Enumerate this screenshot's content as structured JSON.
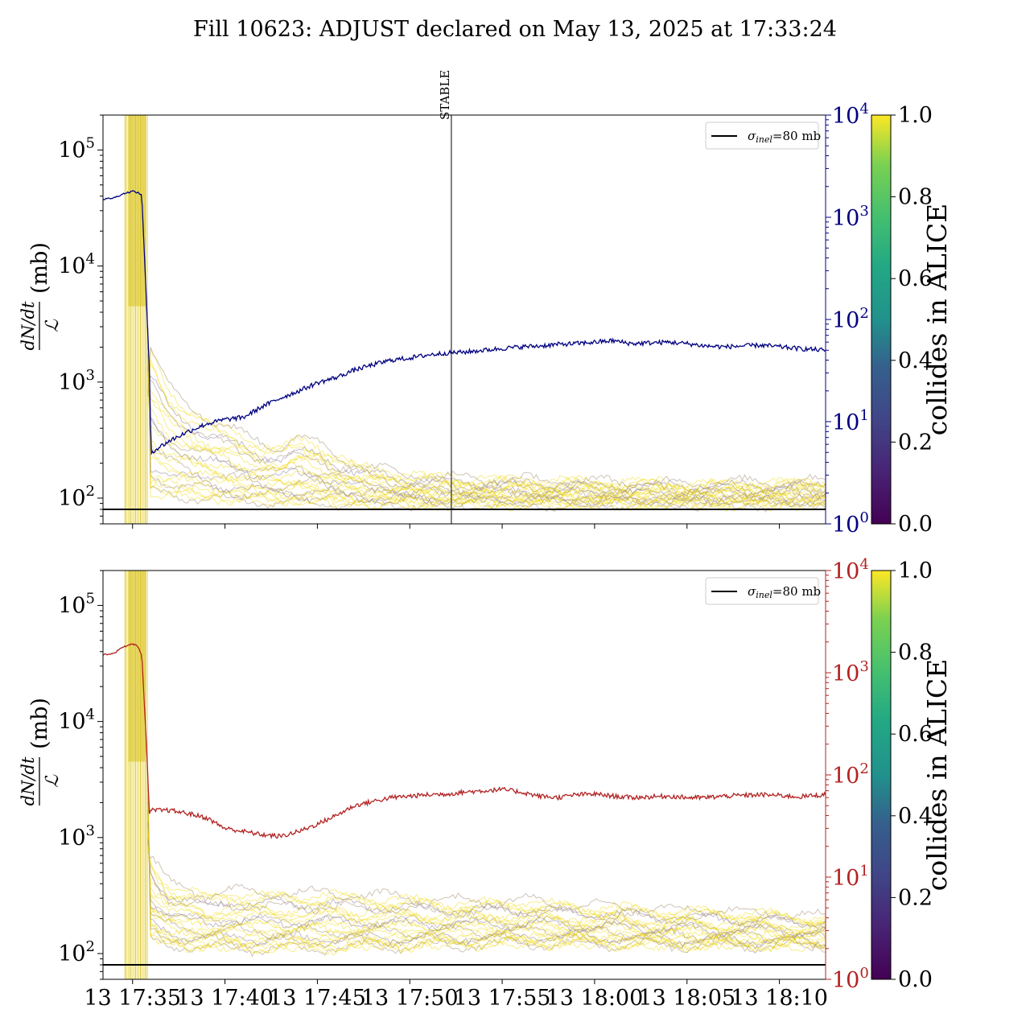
{
  "title": "Fill 10623: ADJUST declared on May 13, 2025 at 17:33:24",
  "chart_data": [
    {
      "type": "line",
      "panel": "top",
      "y_axis_left": {
        "label": "dN/dt / ℒ (mb)",
        "scale": "log",
        "ylim": [
          60,
          200000
        ],
        "ticks": [
          {
            "value": 100,
            "base": "10",
            "exp": "2"
          },
          {
            "value": 1000,
            "base": "10",
            "exp": "3"
          },
          {
            "value": 10000,
            "base": "10",
            "exp": "4"
          },
          {
            "value": 100000,
            "base": "10",
            "exp": "5"
          }
        ]
      },
      "y_axis_right": {
        "scale": "log",
        "ylim": [
          1,
          10000
        ],
        "color": "#000080",
        "ticks": [
          {
            "value": 1,
            "base": "10",
            "exp": "0"
          },
          {
            "value": 10,
            "base": "10",
            "exp": "1"
          },
          {
            "value": 100,
            "base": "10",
            "exp": "2"
          },
          {
            "value": 1000,
            "base": "10",
            "exp": "3"
          },
          {
            "value": 10000,
            "base": "10",
            "exp": "4"
          }
        ]
      },
      "x_range": [
        "2025-05-13 17:33:24",
        "2025-05-13 18:12:30"
      ],
      "reference_line": {
        "value": 80,
        "legend_sym": "σ",
        "legend_sub": "inel",
        "legend_rest": "=80 mb"
      },
      "vertical_marker": {
        "label": "STABLE",
        "time": "2025-05-13 17:52:15"
      },
      "right_series_color": "#000080",
      "right_series": [
        [
          "17:33:24",
          1500
        ],
        [
          "17:34:00",
          1550
        ],
        [
          "17:34:30",
          1700
        ],
        [
          "17:35:00",
          1800
        ],
        [
          "17:35:15",
          1750
        ],
        [
          "17:35:30",
          1650
        ],
        [
          "17:35:45",
          150
        ],
        [
          "17:35:55",
          30
        ],
        [
          "17:36:00",
          5
        ],
        [
          "17:37:00",
          6.5
        ],
        [
          "17:38:00",
          8
        ],
        [
          "17:39:00",
          9.5
        ],
        [
          "17:40:00",
          10.5
        ],
        [
          "17:41:00",
          11
        ],
        [
          "17:42:00",
          14
        ],
        [
          "17:43:00",
          17
        ],
        [
          "17:44:00",
          20
        ],
        [
          "17:45:00",
          24
        ],
        [
          "17:46:00",
          27
        ],
        [
          "17:47:00",
          32
        ],
        [
          "17:48:00",
          36
        ],
        [
          "17:49:00",
          40
        ],
        [
          "17:50:00",
          42
        ],
        [
          "17:51:00",
          45
        ],
        [
          "17:52:00",
          47
        ],
        [
          "17:53:00",
          48
        ],
        [
          "17:54:00",
          50
        ],
        [
          "17:55:00",
          52
        ],
        [
          "17:56:00",
          54
        ],
        [
          "17:57:00",
          55
        ],
        [
          "17:58:00",
          57
        ],
        [
          "17:59:00",
          58
        ],
        [
          "18:00:00",
          60
        ],
        [
          "18:01:00",
          62
        ],
        [
          "18:02:00",
          58
        ],
        [
          "18:03:00",
          59
        ],
        [
          "18:04:00",
          60
        ],
        [
          "18:05:00",
          58
        ],
        [
          "18:06:00",
          55
        ],
        [
          "18:07:00",
          54
        ],
        [
          "18:08:00",
          55
        ],
        [
          "18:09:00",
          56
        ],
        [
          "18:10:00",
          54
        ],
        [
          "18:11:00",
          52
        ],
        [
          "18:12:30",
          50
        ]
      ],
      "band_low": [
        [
          "17:36:00",
          110
        ],
        [
          "17:37:00",
          105
        ],
        [
          "17:38:00",
          102
        ],
        [
          "17:40:00",
          96
        ],
        [
          "17:43:00",
          92
        ],
        [
          "17:46:00",
          90
        ],
        [
          "17:50:00",
          88
        ],
        [
          "17:55:00",
          88
        ],
        [
          "18:00:00",
          88
        ],
        [
          "18:05:00",
          88
        ],
        [
          "18:12:30",
          88
        ]
      ],
      "band_high": [
        [
          "17:36:00",
          2000
        ],
        [
          "17:37:00",
          900
        ],
        [
          "17:38:00",
          650
        ],
        [
          "17:39:00",
          500
        ],
        [
          "17:40:00",
          420
        ],
        [
          "17:41:00",
          350
        ],
        [
          "17:42:00",
          300
        ],
        [
          "17:43:00",
          280
        ],
        [
          "17:44:00",
          330
        ],
        [
          "17:45:00",
          300
        ],
        [
          "17:46:00",
          240
        ],
        [
          "17:47:00",
          200
        ],
        [
          "17:48:00",
          180
        ],
        [
          "17:50:00",
          160
        ],
        [
          "17:52:00",
          150
        ],
        [
          "17:55:00",
          145
        ],
        [
          "18:00:00",
          140
        ],
        [
          "18:05:00",
          135
        ],
        [
          "18:12:30",
          140
        ]
      ],
      "colorbar": {
        "label": "collides in ALICE",
        "range": [
          0,
          1
        ],
        "ticks": [
          "0.0",
          "0.2",
          "0.4",
          "0.6",
          "0.8",
          "1.0"
        ],
        "colormap": "viridis"
      }
    },
    {
      "type": "line",
      "panel": "bottom",
      "y_axis_left": {
        "label": "dN/dt / ℒ (mb)",
        "scale": "log",
        "ylim": [
          60,
          200000
        ],
        "ticks": [
          {
            "value": 100,
            "base": "10",
            "exp": "2"
          },
          {
            "value": 1000,
            "base": "10",
            "exp": "3"
          },
          {
            "value": 10000,
            "base": "10",
            "exp": "4"
          },
          {
            "value": 100000,
            "base": "10",
            "exp": "5"
          }
        ]
      },
      "y_axis_right": {
        "scale": "log",
        "ylim": [
          1,
          10000
        ],
        "color": "#b22222",
        "ticks": [
          {
            "value": 1,
            "base": "10",
            "exp": "0"
          },
          {
            "value": 10,
            "base": "10",
            "exp": "1"
          },
          {
            "value": 100,
            "base": "10",
            "exp": "2"
          },
          {
            "value": 1000,
            "base": "10",
            "exp": "3"
          },
          {
            "value": 10000,
            "base": "10",
            "exp": "4"
          }
        ]
      },
      "x_range": [
        "2025-05-13 17:33:24",
        "2025-05-13 18:12:30"
      ],
      "x_ticks": [
        {
          "time": "17:35:00",
          "label": "13 17:35"
        },
        {
          "time": "17:40:00",
          "label": "13 17:40"
        },
        {
          "time": "17:45:00",
          "label": "13 17:45"
        },
        {
          "time": "17:50:00",
          "label": "13 17:50"
        },
        {
          "time": "17:55:00",
          "label": "13 17:55"
        },
        {
          "time": "18:00:00",
          "label": "13 18:00"
        },
        {
          "time": "18:05:00",
          "label": "13 18:05"
        },
        {
          "time": "18:10:00",
          "label": "13 18:10"
        }
      ],
      "reference_line": {
        "value": 80,
        "legend_sym": "σ",
        "legend_sub": "inel",
        "legend_rest": "=80 mb"
      },
      "right_series_color": "#b22222",
      "right_series": [
        [
          "17:33:24",
          1500
        ],
        [
          "17:34:00",
          1550
        ],
        [
          "17:34:30",
          1800
        ],
        [
          "17:35:00",
          1900
        ],
        [
          "17:35:15",
          1850
        ],
        [
          "17:35:30",
          1500
        ],
        [
          "17:35:45",
          200
        ],
        [
          "17:35:55",
          40
        ],
        [
          "17:36:00",
          45
        ],
        [
          "17:37:00",
          45
        ],
        [
          "17:38:00",
          42
        ],
        [
          "17:39:00",
          38
        ],
        [
          "17:40:00",
          30
        ],
        [
          "17:41:00",
          28
        ],
        [
          "17:42:00",
          26
        ],
        [
          "17:43:00",
          25
        ],
        [
          "17:44:00",
          28
        ],
        [
          "17:45:00",
          33
        ],
        [
          "17:46:00",
          40
        ],
        [
          "17:47:00",
          50
        ],
        [
          "17:48:00",
          55
        ],
        [
          "17:49:00",
          60
        ],
        [
          "17:50:00",
          62
        ],
        [
          "17:51:00",
          64
        ],
        [
          "17:52:00",
          65
        ],
        [
          "17:53:00",
          68
        ],
        [
          "17:54:00",
          70
        ],
        [
          "17:55:00",
          72
        ],
        [
          "17:56:00",
          68
        ],
        [
          "17:57:00",
          62
        ],
        [
          "17:58:00",
          60
        ],
        [
          "17:59:00",
          64
        ],
        [
          "18:00:00",
          65
        ],
        [
          "18:01:00",
          62
        ],
        [
          "18:02:00",
          60
        ],
        [
          "18:03:00",
          61
        ],
        [
          "18:04:00",
          62
        ],
        [
          "18:05:00",
          60
        ],
        [
          "18:06:00",
          60
        ],
        [
          "18:07:00",
          62
        ],
        [
          "18:08:00",
          63
        ],
        [
          "18:09:00",
          64
        ],
        [
          "18:10:00",
          63
        ],
        [
          "18:11:00",
          61
        ],
        [
          "18:12:30",
          64
        ]
      ],
      "band_low": [
        [
          "17:36:00",
          130
        ],
        [
          "17:37:00",
          120
        ],
        [
          "17:38:00",
          115
        ],
        [
          "17:40:00",
          110
        ],
        [
          "17:45:00",
          110
        ],
        [
          "17:50:00",
          115
        ],
        [
          "17:55:00",
          120
        ],
        [
          "18:00:00",
          120
        ],
        [
          "18:05:00",
          115
        ],
        [
          "18:12:30",
          115
        ]
      ],
      "band_high": [
        [
          "17:36:00",
          700
        ],
        [
          "17:37:00",
          400
        ],
        [
          "17:38:00",
          350
        ],
        [
          "17:39:00",
          320
        ],
        [
          "17:40:00",
          360
        ],
        [
          "17:42:00",
          330
        ],
        [
          "17:44:00",
          340
        ],
        [
          "17:46:00",
          330
        ],
        [
          "17:48:00",
          320
        ],
        [
          "17:50:00",
          300
        ],
        [
          "17:52:00",
          290
        ],
        [
          "17:54:00",
          280
        ],
        [
          "17:56:00",
          290
        ],
        [
          "17:58:00",
          270
        ],
        [
          "18:00:00",
          260
        ],
        [
          "18:02:00",
          250
        ],
        [
          "18:05:00",
          240
        ],
        [
          "18:08:00",
          230
        ],
        [
          "18:12:30",
          210
        ]
      ],
      "colorbar": {
        "label": "collides in ALICE",
        "range": [
          0,
          1
        ],
        "ticks": [
          "0.0",
          "0.2",
          "0.4",
          "0.6",
          "0.8",
          "1.0"
        ],
        "colormap": "viridis"
      }
    }
  ]
}
